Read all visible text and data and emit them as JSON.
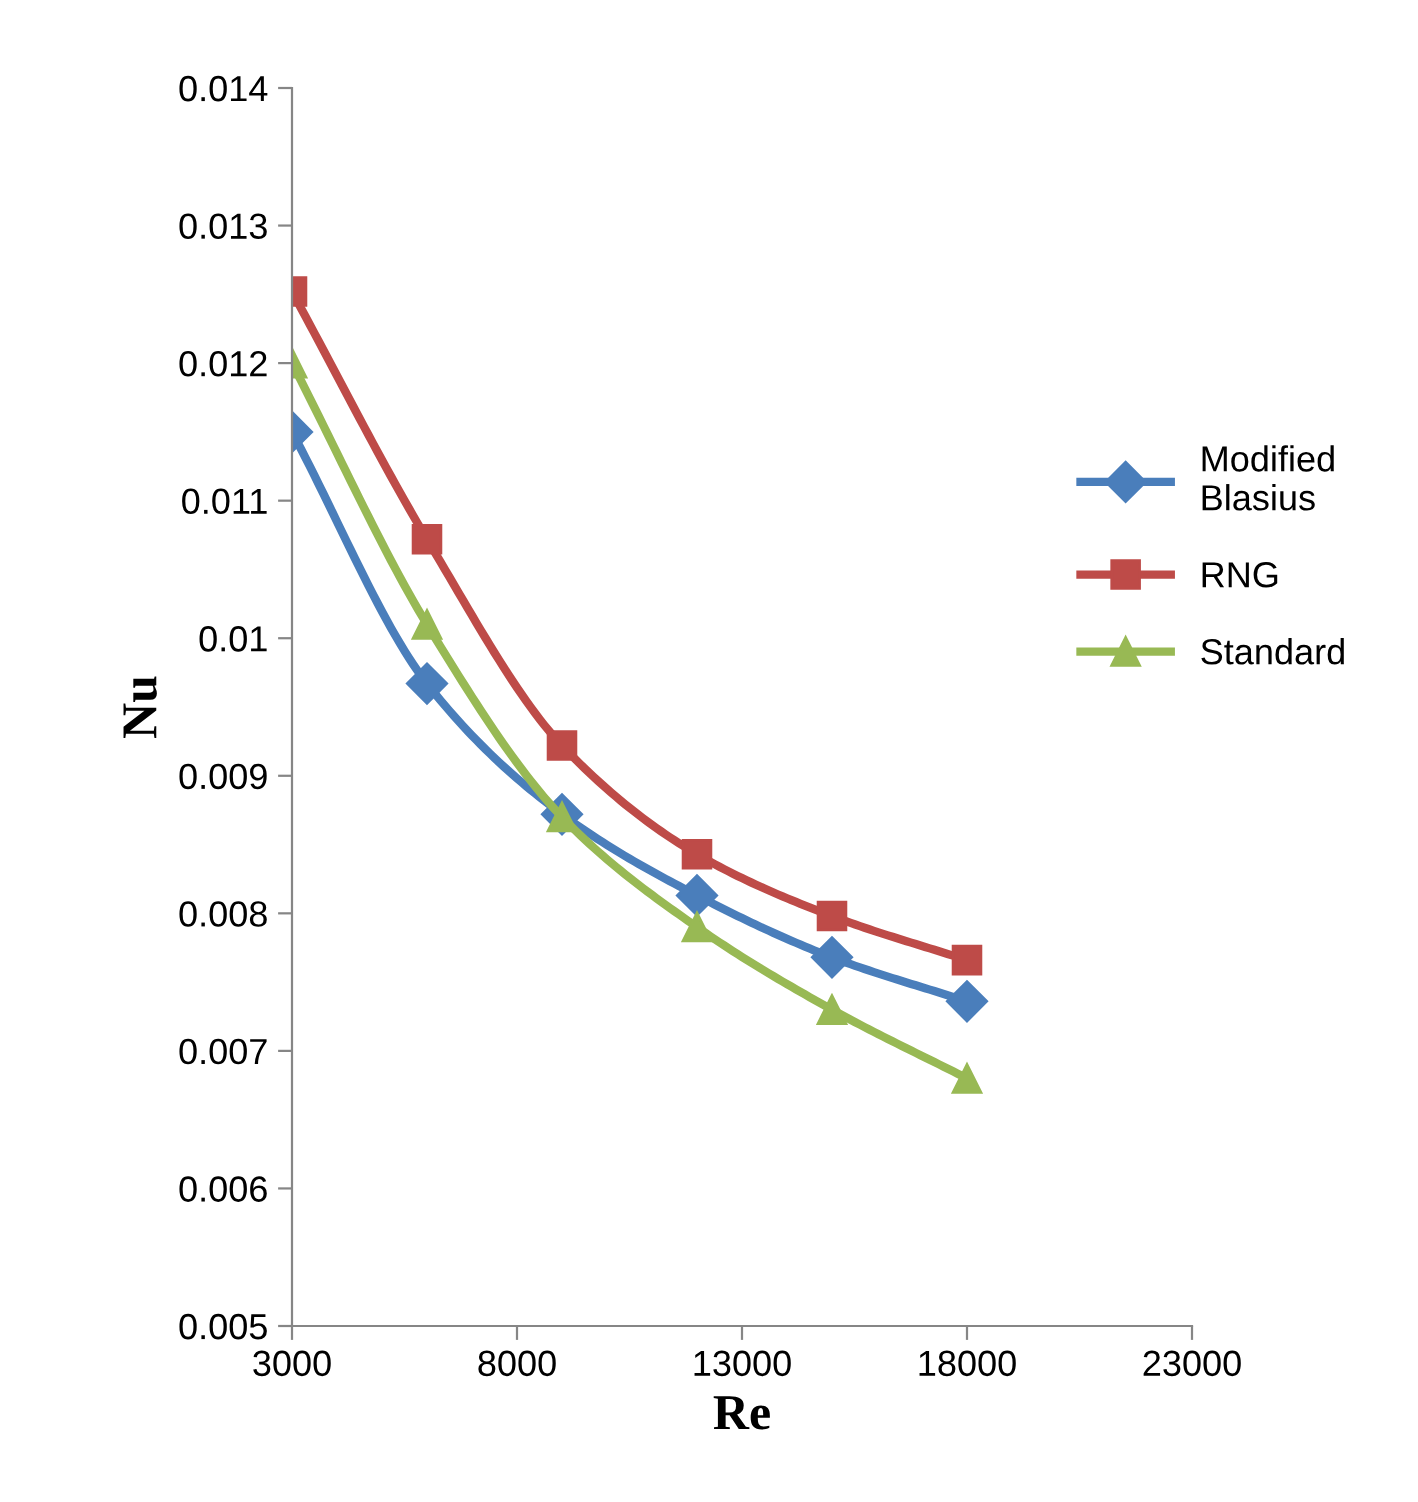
{
  "chart_data": {
    "type": "line",
    "xlabel": "Re",
    "ylabel": "Nu",
    "x": [
      3000,
      6000,
      9000,
      12000,
      15000,
      18000
    ],
    "series": [
      {
        "name": "Modified Blasius",
        "color": "#4a7ebb",
        "marker": "diamond",
        "values": [
          0.0115,
          0.00967,
          0.00872,
          0.00813,
          0.00768,
          0.00736
        ]
      },
      {
        "name": "RNG",
        "color": "#be4b48",
        "marker": "square",
        "values": [
          0.01252,
          0.01072,
          0.00922,
          0.00843,
          0.00798,
          0.00766
        ]
      },
      {
        "name": "Standard",
        "color": "#98b954",
        "marker": "triangle",
        "values": [
          0.012,
          0.0101,
          0.0087,
          0.0079,
          0.0073,
          0.0068
        ]
      }
    ],
    "xlim": [
      3000,
      23000
    ],
    "xticks": [
      3000,
      8000,
      13000,
      18000,
      23000
    ],
    "ylim": [
      0.005,
      0.014
    ],
    "yticks": [
      0.005,
      0.006,
      0.007,
      0.008,
      0.009,
      0.01,
      0.011,
      0.012,
      0.013,
      0.014
    ],
    "grid": false,
    "legend": "right",
    "line_style": "solid"
  }
}
